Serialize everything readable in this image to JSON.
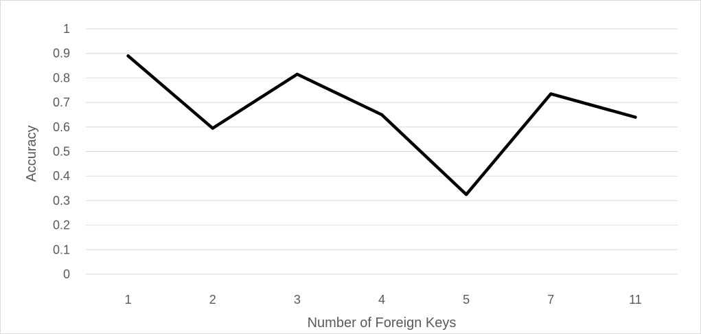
{
  "chart_data": {
    "type": "line",
    "title": "",
    "xlabel": "Number of Foreign Keys",
    "ylabel": "Accuracy",
    "categories": [
      "1",
      "2",
      "3",
      "4",
      "5",
      "7",
      "11"
    ],
    "series": [
      {
        "values": [
          0.89,
          0.595,
          0.815,
          0.65,
          0.325,
          0.735,
          0.64
        ]
      }
    ],
    "ylim": [
      0,
      1
    ],
    "yticks": [
      "0",
      "0.1",
      "0.2",
      "0.3",
      "0.4",
      "0.5",
      "0.6",
      "0.7",
      "0.8",
      "0.9",
      "1"
    ],
    "grid": true,
    "legend": "none",
    "colors": {
      "line": "#000000",
      "grid": "#d9d9d9",
      "text": "#595959"
    }
  }
}
